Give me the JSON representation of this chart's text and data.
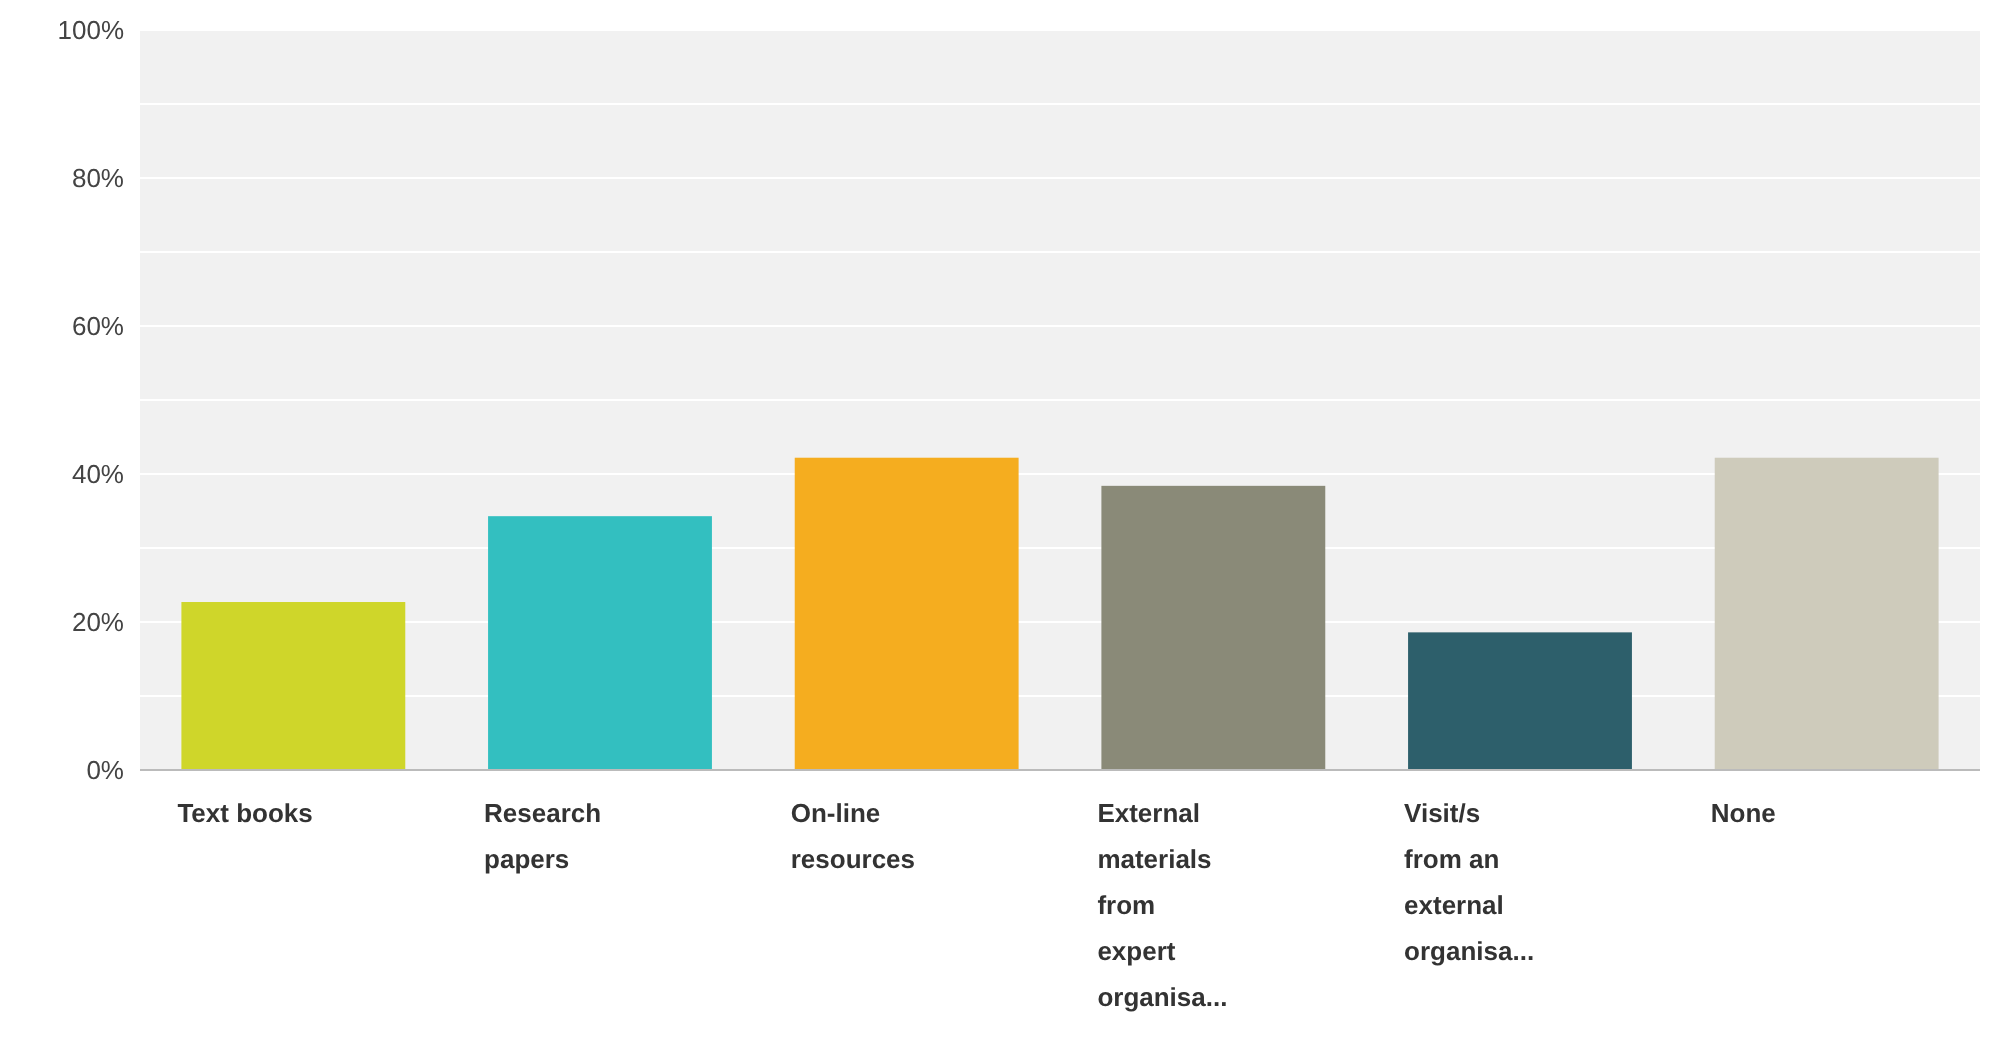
{
  "chart_data": {
    "type": "bar",
    "categories": [
      "Text books",
      "Research papers",
      "On-line resources",
      "External materials from expert organisa...",
      "Visit/s from an external organisa...",
      "None"
    ],
    "values": [
      22.7,
      34.3,
      42.2,
      38.4,
      18.6,
      42.2
    ],
    "colors": [
      "#cfd62a",
      "#33bfc0",
      "#f5ad1f",
      "#8a8a78",
      "#2d5f6b",
      "#cecbbb"
    ],
    "ylim": [
      0,
      100
    ],
    "yticks": [
      {
        "value": 0,
        "label": "0%"
      },
      {
        "value": 10,
        "label": null
      },
      {
        "value": 20,
        "label": "20%"
      },
      {
        "value": 30,
        "label": null
      },
      {
        "value": 40,
        "label": "40%"
      },
      {
        "value": 50,
        "label": null
      },
      {
        "value": 60,
        "label": "60%"
      },
      {
        "value": 70,
        "label": null
      },
      {
        "value": 80,
        "label": "80%"
      },
      {
        "value": 90,
        "label": null
      },
      {
        "value": 100,
        "label": "100%"
      }
    ],
    "grid": "y"
  }
}
